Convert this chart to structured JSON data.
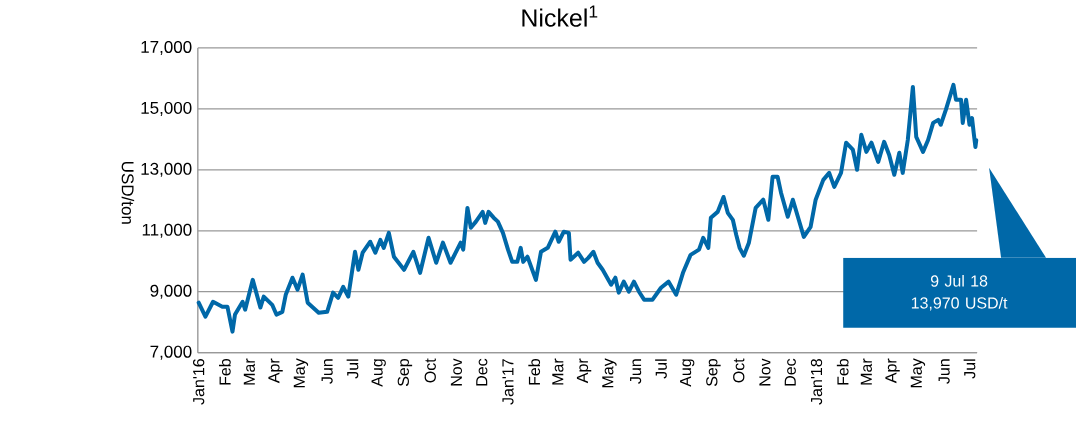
{
  "chart_data": {
    "type": "line",
    "title": "Nickel$^{1}$",
    "ylabel": "USD/ton",
    "color": "#0068a8",
    "grid": "y",
    "xlim": [
      "2015-12-31",
      "2018-07-10"
    ],
    "ylim": [
      7000,
      17000
    ],
    "yticks": [
      {
        "value": 7000,
        "label": "7,000"
      },
      {
        "value": 9000,
        "label": "9,000"
      },
      {
        "value": 11000,
        "label": "11,000"
      },
      {
        "value": 13000,
        "label": "13,000"
      },
      {
        "value": 15000,
        "label": "15,000"
      },
      {
        "value": 17000,
        "label": "17,000"
      }
    ],
    "xticks": [
      {
        "value": "2016-01-01",
        "label": "Jan'16"
      },
      {
        "value": "2016-02-01",
        "label": "Feb"
      },
      {
        "value": "2016-03-01",
        "label": "Mar"
      },
      {
        "value": "2016-04-01",
        "label": "Apr"
      },
      {
        "value": "2016-05-01",
        "label": "May"
      },
      {
        "value": "2016-06-01",
        "label": "Jun"
      },
      {
        "value": "2016-07-01",
        "label": "Jul"
      },
      {
        "value": "2016-08-01",
        "label": "Aug"
      },
      {
        "value": "2016-09-01",
        "label": "Sep"
      },
      {
        "value": "2016-10-01",
        "label": "Oct"
      },
      {
        "value": "2016-11-01",
        "label": "Nov"
      },
      {
        "value": "2016-12-01",
        "label": "Dec"
      },
      {
        "value": "2017-01-01",
        "label": "Jan'17"
      },
      {
        "value": "2017-02-01",
        "label": "Feb"
      },
      {
        "value": "2017-03-01",
        "label": "Mar"
      },
      {
        "value": "2017-04-01",
        "label": "Apr"
      },
      {
        "value": "2017-05-01",
        "label": "May"
      },
      {
        "value": "2017-06-01",
        "label": "Jun"
      },
      {
        "value": "2017-07-01",
        "label": "Jul"
      },
      {
        "value": "2017-08-01",
        "label": "Aug"
      },
      {
        "value": "2017-09-01",
        "label": "Sep"
      },
      {
        "value": "2017-10-01",
        "label": "Oct"
      },
      {
        "value": "2017-11-01",
        "label": "Nov"
      },
      {
        "value": "2017-12-01",
        "label": "Dec"
      },
      {
        "value": "2018-01-01",
        "label": "Jan'18"
      },
      {
        "value": "2018-02-01",
        "label": "Feb"
      },
      {
        "value": "2018-03-01",
        "label": "Mar"
      },
      {
        "value": "2018-04-01",
        "label": "Apr"
      },
      {
        "value": "2018-05-01",
        "label": "May"
      },
      {
        "value": "2018-06-01",
        "label": "Jun"
      },
      {
        "value": "2018-07-01",
        "label": "Jul"
      }
    ],
    "x": [
      "2016-01-01",
      "2016-01-09",
      "2016-01-18",
      "2016-01-29",
      "2016-02-04",
      "2016-02-10",
      "2016-02-13",
      "2016-02-22",
      "2016-02-25",
      "2016-03-05",
      "2016-03-14",
      "2016-03-18",
      "2016-03-28",
      "2016-04-02",
      "2016-04-09",
      "2016-04-13",
      "2016-04-21",
      "2016-04-27",
      "2016-05-03",
      "2016-05-09",
      "2016-05-22",
      "2016-06-01",
      "2016-06-08",
      "2016-06-14",
      "2016-06-20",
      "2016-06-26",
      "2016-07-04",
      "2016-07-08",
      "2016-07-13",
      "2016-07-22",
      "2016-07-28",
      "2016-08-03",
      "2016-08-07",
      "2016-08-13",
      "2016-08-19",
      "2016-08-31",
      "2016-09-11",
      "2016-09-19",
      "2016-09-29",
      "2016-10-08",
      "2016-10-16",
      "2016-10-25",
      "2016-11-06",
      "2016-11-09",
      "2016-11-14",
      "2016-11-18",
      "2016-11-24",
      "2016-12-02",
      "2016-12-05",
      "2016-12-09",
      "2016-12-15",
      "2016-12-20",
      "2016-12-26",
      "2017-01-01",
      "2017-01-06",
      "2017-01-12",
      "2017-01-16",
      "2017-01-19",
      "2017-01-24",
      "2017-02-03",
      "2017-02-09",
      "2017-02-17",
      "2017-02-26",
      "2017-03-02",
      "2017-03-08",
      "2017-03-14",
      "2017-03-16",
      "2017-03-25",
      "2017-04-01",
      "2017-04-06",
      "2017-04-12",
      "2017-04-17",
      "2017-04-23",
      "2017-05-03",
      "2017-05-08",
      "2017-05-12",
      "2017-05-18",
      "2017-05-24",
      "2017-05-30",
      "2017-06-05",
      "2017-06-11",
      "2017-06-21",
      "2017-07-01",
      "2017-07-10",
      "2017-07-19",
      "2017-07-27",
      "2017-08-05",
      "2017-08-15",
      "2017-08-20",
      "2017-08-26",
      "2017-08-29",
      "2017-09-06",
      "2017-09-13",
      "2017-09-18",
      "2017-09-24",
      "2017-09-28",
      "2017-10-02",
      "2017-10-07",
      "2017-10-13",
      "2017-10-21",
      "2017-10-30",
      "2017-11-05",
      "2017-11-10",
      "2017-11-16",
      "2017-11-20",
      "2017-11-28",
      "2017-12-04",
      "2017-12-11",
      "2017-12-17",
      "2017-12-25",
      "2017-12-31",
      "2018-01-09",
      "2018-01-16",
      "2018-01-22",
      "2018-01-30",
      "2018-02-05",
      "2018-02-13",
      "2018-02-18",
      "2018-02-23",
      "2018-03-01",
      "2018-03-07",
      "2018-03-15",
      "2018-03-22",
      "2018-03-28",
      "2018-04-03",
      "2018-04-09",
      "2018-04-13",
      "2018-04-19",
      "2018-04-25",
      "2018-04-29",
      "2018-05-07",
      "2018-05-13",
      "2018-05-19",
      "2018-05-25",
      "2018-05-28",
      "2018-06-03",
      "2018-06-12",
      "2018-06-15",
      "2018-06-21",
      "2018-06-23",
      "2018-06-27",
      "2018-07-01",
      "2018-07-04",
      "2018-07-06",
      "2018-07-08",
      "2018-07-09"
    ],
    "values": [
      8640,
      8180,
      8670,
      8510,
      8510,
      7690,
      8250,
      8670,
      8410,
      9390,
      8480,
      8840,
      8570,
      8250,
      8340,
      8900,
      9460,
      9070,
      9560,
      8640,
      8310,
      8340,
      8970,
      8800,
      9160,
      8840,
      10310,
      9720,
      10280,
      10640,
      10280,
      10700,
      10440,
      10930,
      10150,
      9720,
      10310,
      9620,
      10770,
      9950,
      10610,
      9950,
      10610,
      10380,
      11750,
      11100,
      11300,
      11620,
      11260,
      11620,
      11430,
      11300,
      10930,
      10380,
      9980,
      9980,
      10440,
      9980,
      10150,
      9390,
      10310,
      10440,
      10970,
      10640,
      10970,
      10930,
      10050,
      10280,
      9980,
      10110,
      10310,
      9950,
      9720,
      9230,
      9460,
      8970,
      9330,
      9000,
      9330,
      9000,
      8740,
      8740,
      9130,
      9330,
      8900,
      9620,
      10210,
      10380,
      10770,
      10440,
      11430,
      11620,
      12110,
      11590,
      11360,
      10870,
      10440,
      10180,
      10610,
      11750,
      12020,
      11360,
      12770,
      12770,
      12250,
      11460,
      12020,
      11360,
      10800,
      11130,
      12020,
      12670,
      12900,
      12440,
      12900,
      13890,
      13660,
      13000,
      14150,
      13590,
      13890,
      13260,
      13920,
      13490,
      12840,
      13560,
      12900,
      13980,
      15720,
      14080,
      13590,
      13980,
      14540,
      14640,
      14480,
      14970,
      15790,
      15300,
      15300,
      14540,
      15300,
      14480,
      14700,
      14210,
      13750,
      13970
    ],
    "annotations": [
      "9 Jul 18 13,970 USD/t"
    ]
  }
}
